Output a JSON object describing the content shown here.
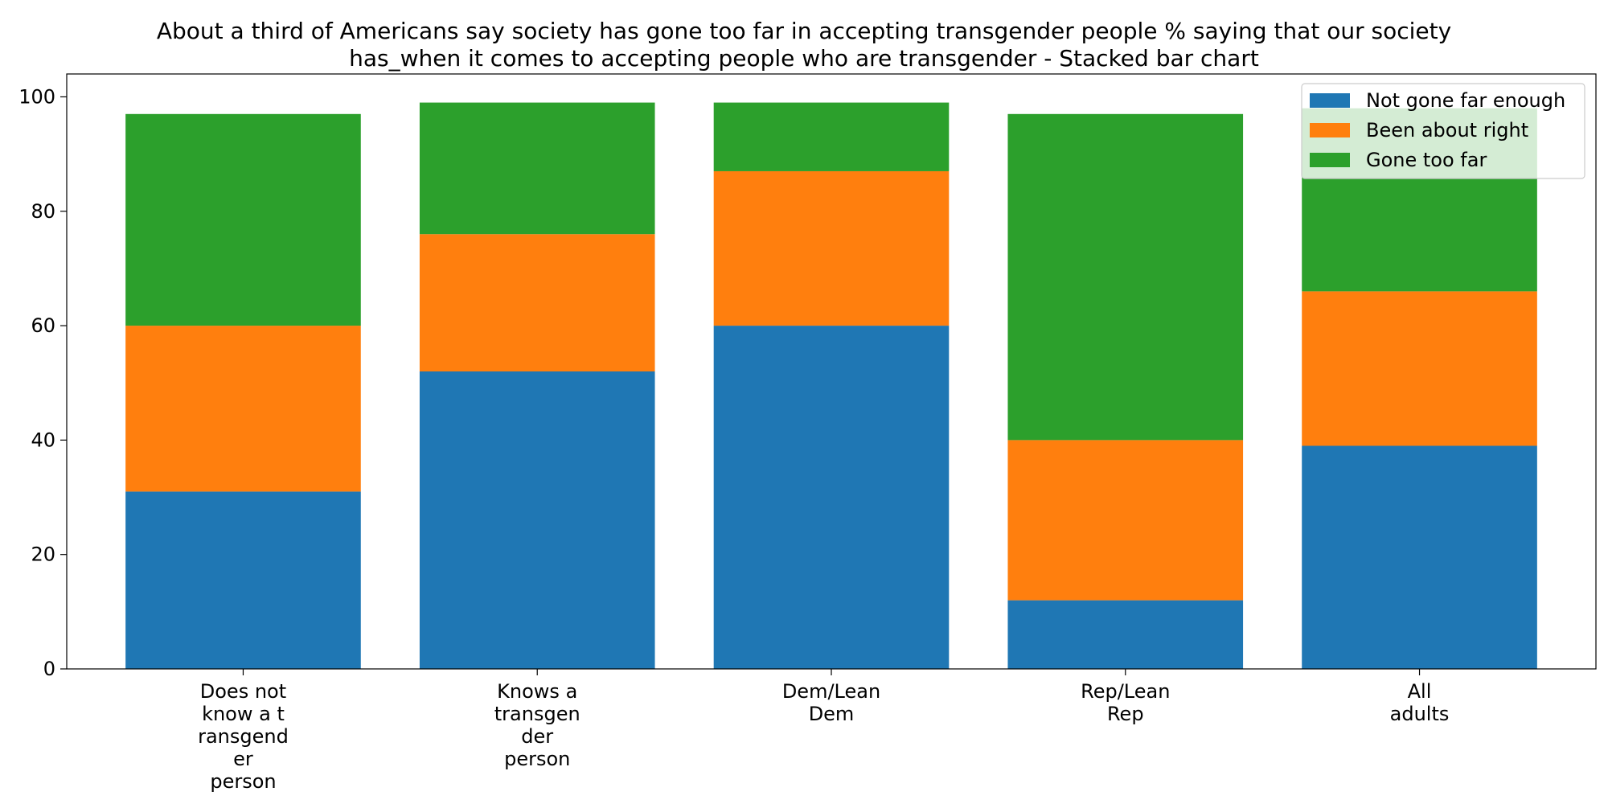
{
  "chart_data": {
    "type": "bar",
    "stacked": true,
    "title": "About a third of Americans say society has gone too far in accepting transgender people % saying that our society has_when it comes to accepting people who are transgender  - Stacked bar chart",
    "title_lines": [
      "About a third of Americans say society has gone too far in accepting transgender people % saying that our society",
      "has_when it comes to accepting people who are transgender  - Stacked bar chart"
    ],
    "xlabel": "",
    "ylabel": "",
    "ylim": [
      0,
      104
    ],
    "yticks": [
      0,
      20,
      40,
      60,
      80,
      100
    ],
    "grid": false,
    "legend_position": "top-right",
    "categories": [
      [
        "Does not",
        "know a t",
        "ransgend",
        "er",
        "person"
      ],
      [
        "Knows a",
        "transgen",
        "der",
        "person"
      ],
      [
        "Dem/Lean",
        "Dem"
      ],
      [
        "Rep/Lean",
        "Rep"
      ],
      [
        "All",
        "adults"
      ]
    ],
    "series": [
      {
        "name": "Not gone far enough",
        "color": "#1f77b4",
        "values": [
          31,
          52,
          60,
          12,
          39
        ]
      },
      {
        "name": "Been about right",
        "color": "#ff7f0e",
        "values": [
          29,
          24,
          27,
          28,
          27
        ]
      },
      {
        "name": "Gone too far",
        "color": "#2ca02c",
        "values": [
          37,
          23,
          12,
          57,
          32
        ]
      }
    ]
  }
}
